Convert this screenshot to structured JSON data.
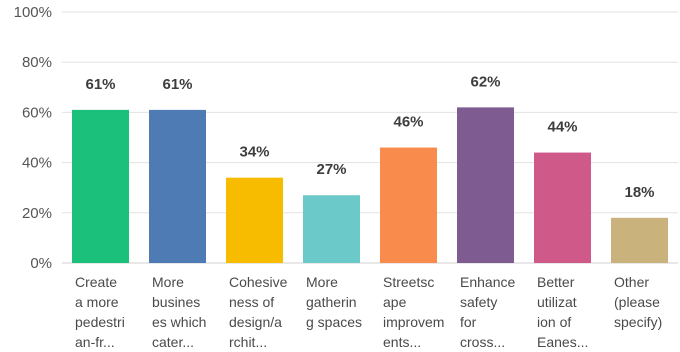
{
  "chart_data": {
    "type": "bar",
    "categories": [
      [
        "Create",
        "a more",
        "pedestri",
        "an-fr..."
      ],
      [
        "More",
        "busines",
        "es which",
        "cater..."
      ],
      [
        "Cohesive",
        "ness of",
        "design/a",
        "rchit..."
      ],
      [
        "More",
        "gatherin",
        "g spaces"
      ],
      [
        "Streetsc",
        "ape",
        "improvem",
        "ents..."
      ],
      [
        "Enhance",
        "safety",
        "for",
        "cross..."
      ],
      [
        "Better",
        "utilizat",
        "ion of",
        "Eanes..."
      ],
      [
        "Other",
        "(please",
        "specify)"
      ]
    ],
    "values": [
      61,
      61,
      34,
      27,
      46,
      62,
      44,
      18
    ],
    "data_labels": [
      "61%",
      "61%",
      "34%",
      "27%",
      "46%",
      "62%",
      "44%",
      "18%"
    ],
    "colors": [
      "#1bc07a",
      "#4f7bb5",
      "#f7bb00",
      "#6cc9c9",
      "#f98b4d",
      "#7e5c91",
      "#cf5a8a",
      "#c9b27c"
    ],
    "ylim": [
      0,
      100
    ],
    "yticks": [
      0,
      20,
      40,
      60,
      80,
      100
    ],
    "ytick_labels": [
      "0%",
      "20%",
      "40%",
      "60%",
      "80%",
      "100%"
    ],
    "grid": true
  }
}
